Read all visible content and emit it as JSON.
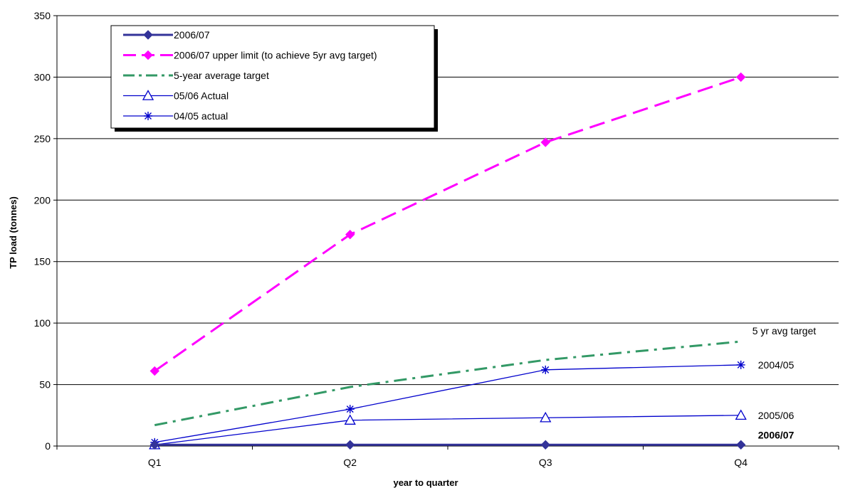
{
  "chart_data": {
    "type": "line",
    "title": "",
    "xlabel": "year to quarter",
    "ylabel": "TP load (tonnes)",
    "ylim": [
      0,
      350
    ],
    "yticks": [
      "0",
      "50",
      "100",
      "150",
      "200",
      "250",
      "300",
      "350"
    ],
    "categories": [
      "Q1",
      "Q2",
      "Q3",
      "Q4"
    ],
    "grid": "horizontal",
    "legend_position": "top-left",
    "series": [
      {
        "name": "2006/07",
        "values": [
          1,
          1,
          1,
          1
        ],
        "color": "#333399",
        "marker": "diamond",
        "dash": "solid",
        "end_label": "2006/07"
      },
      {
        "name": "2006/07 upper limit (to achieve 5yr avg target)",
        "values": [
          61,
          172,
          247,
          300
        ],
        "color": "#FF00FF",
        "marker": "diamond",
        "dash": "dashed",
        "end_label": ""
      },
      {
        "name": "5-year average target",
        "values": [
          17,
          48,
          70,
          85
        ],
        "color": "#339966",
        "marker": "none",
        "dash": "dashdot",
        "end_label": "5 yr avg target"
      },
      {
        "name": "05/06 Actual",
        "values": [
          1,
          21,
          23,
          25
        ],
        "color": "#0000CC",
        "marker": "triangle",
        "dash": "solid",
        "end_label": "2005/06"
      },
      {
        "name": "04/05 actual",
        "values": [
          3,
          30,
          62,
          66
        ],
        "color": "#0000CC",
        "marker": "star",
        "dash": "solid",
        "end_label": "2004/05"
      }
    ]
  }
}
